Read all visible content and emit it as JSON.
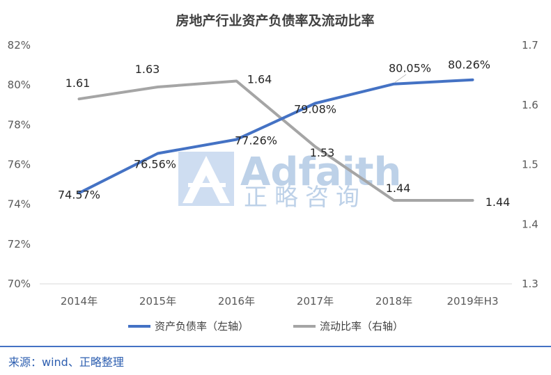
{
  "chart_data": {
    "type": "line",
    "title": "房地产行业资产负债率及流动比率",
    "categories": [
      "2014年",
      "2015年",
      "2016年",
      "2017年",
      "2018年",
      "2019年H3"
    ],
    "series": [
      {
        "name": "资产负债率（左轴）",
        "axis": "left",
        "color": "#4472c4",
        "values": [
          74.57,
          76.56,
          77.26,
          79.08,
          80.05,
          80.26
        ],
        "labels": [
          "74.57%",
          "76.56%",
          "77.26%",
          "79.08%",
          "80.05%",
          "80.26%"
        ]
      },
      {
        "name": "流动比率（右轴）",
        "axis": "right",
        "color": "#a5a5a5",
        "values": [
          1.61,
          1.63,
          1.64,
          1.53,
          1.44,
          1.44
        ],
        "labels": [
          "1.61",
          "1.63",
          "1.64",
          "1.53",
          "1.44",
          "1.44"
        ]
      }
    ],
    "y_left": {
      "min": 70,
      "max": 82,
      "ticks": [
        "70%",
        "72%",
        "74%",
        "76%",
        "78%",
        "80%",
        "82%"
      ]
    },
    "y_right": {
      "min": 1.3,
      "max": 1.7,
      "ticks": [
        "1.3",
        "1.4",
        "1.5",
        "1.6",
        "1.7"
      ]
    },
    "grid": false,
    "legend": "bottom"
  },
  "watermark": {
    "main": "Adfaith",
    "sub": "正略咨询"
  },
  "source": "来源：wind、正略整理"
}
